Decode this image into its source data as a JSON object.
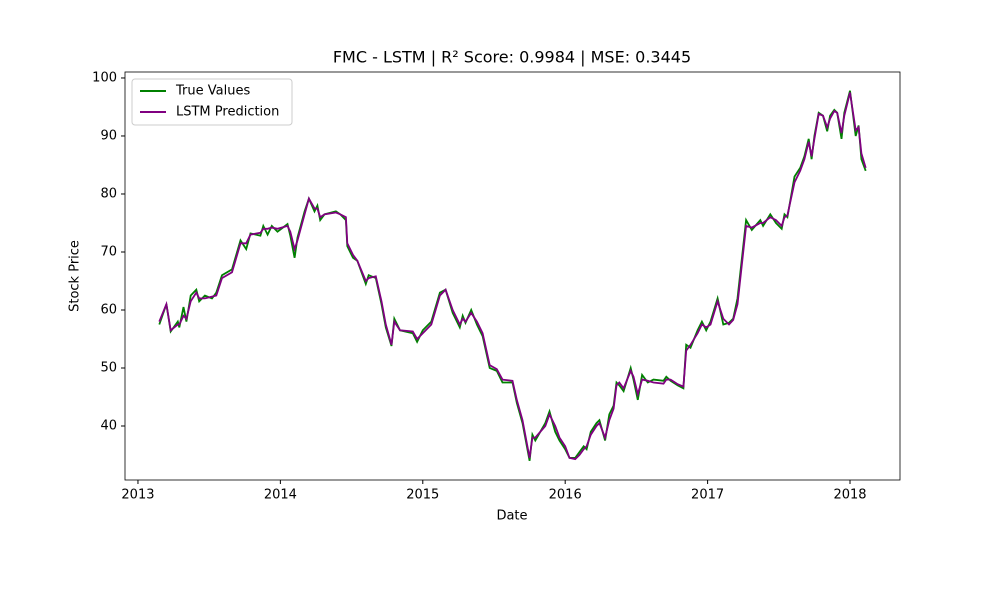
{
  "chart_data": {
    "type": "line",
    "title": "FMC - LSTM | R² Score: 0.9984 | MSE: 0.3445",
    "x_label": "Date",
    "y_label": "Stock Price",
    "x": [
      2013.15,
      2013.2,
      2013.23,
      2013.28,
      2013.29,
      2013.32,
      2013.34,
      2013.37,
      2013.41,
      2013.43,
      2013.47,
      2013.52,
      2013.55,
      2013.59,
      2013.66,
      2013.72,
      2013.76,
      2013.79,
      2013.86,
      2013.88,
      2013.91,
      2013.94,
      2013.98,
      2014.05,
      2014.07,
      2014.1,
      2014.12,
      2014.17,
      2014.2,
      2014.24,
      2014.26,
      2014.28,
      2014.31,
      2014.39,
      2014.42,
      2014.46,
      2014.47,
      2014.51,
      2014.54,
      2014.6,
      2014.62,
      2014.67,
      2014.71,
      2014.74,
      2014.78,
      2014.8,
      2014.84,
      2014.93,
      2014.96,
      2015.0,
      2015.06,
      2015.12,
      2015.16,
      2015.21,
      2015.26,
      2015.28,
      2015.3,
      2015.34,
      2015.38,
      2015.42,
      2015.47,
      2015.52,
      2015.56,
      2015.63,
      2015.66,
      2015.7,
      2015.75,
      2015.77,
      2015.79,
      2015.86,
      2015.89,
      2015.93,
      2015.96,
      2016.0,
      2016.03,
      2016.07,
      2016.1,
      2016.13,
      2016.15,
      2016.18,
      2016.22,
      2016.24,
      2016.28,
      2016.31,
      2016.34,
      2016.36,
      2016.38,
      2016.41,
      2016.46,
      2016.48,
      2016.51,
      2016.54,
      2016.58,
      2016.62,
      2016.69,
      2016.71,
      2016.74,
      2016.79,
      2016.83,
      2016.85,
      2016.88,
      2016.93,
      2016.96,
      2016.99,
      2017.02,
      2017.07,
      2017.11,
      2017.15,
      2017.18,
      2017.21,
      2017.27,
      2017.31,
      2017.37,
      2017.39,
      2017.44,
      2017.48,
      2017.52,
      2017.54,
      2017.56,
      2017.61,
      2017.65,
      2017.68,
      2017.71,
      2017.73,
      2017.75,
      2017.78,
      2017.81,
      2017.84,
      2017.86,
      2017.89,
      2017.91,
      2017.94,
      2017.96,
      2018.0,
      2018.04,
      2018.06,
      2018.08,
      2018.11
    ],
    "series": [
      {
        "name": "True Values",
        "color": "#008000",
        "values": [
          57.5,
          61,
          56.3,
          58,
          57,
          60.5,
          58,
          62.5,
          63.5,
          61.5,
          62.5,
          62,
          63,
          66,
          67,
          72,
          70.5,
          73.2,
          72.8,
          74.5,
          73,
          74.5,
          73.5,
          74.8,
          72.8,
          69,
          72.5,
          77,
          79.2,
          77,
          78,
          75.5,
          76.5,
          77,
          76.5,
          75.5,
          71,
          69,
          68.5,
          64.5,
          66,
          65.5,
          61,
          57,
          53.8,
          58.5,
          56.5,
          56,
          54.5,
          56.5,
          58,
          63,
          63.5,
          59.5,
          57,
          59,
          57.8,
          60,
          57.5,
          55.5,
          50,
          49.5,
          47.5,
          47.5,
          44,
          40.5,
          34,
          38.5,
          37.5,
          40.5,
          42.5,
          39,
          37.5,
          36,
          34.5,
          34.5,
          35.5,
          36.5,
          36,
          39,
          40.5,
          41,
          37.5,
          42,
          43.5,
          47.5,
          47,
          46,
          50,
          48,
          44.5,
          48.8,
          47.5,
          48,
          47.8,
          48.5,
          47.8,
          47,
          46.5,
          54,
          53.5,
          56.5,
          58,
          56.5,
          58,
          62,
          57.5,
          57.8,
          58.5,
          62,
          75.5,
          73.8,
          75.5,
          74.5,
          76.5,
          75,
          74,
          76.5,
          76,
          83,
          84.5,
          86.5,
          89.5,
          86,
          90,
          94,
          93.5,
          90.8,
          93.5,
          94.5,
          94,
          89.5,
          94,
          97.8,
          90,
          91.8,
          86,
          84
        ]
      },
      {
        "name": "LSTM Prediction",
        "color": "#800080",
        "values": [
          58,
          61,
          56.5,
          57.5,
          57.5,
          59,
          58.5,
          61.5,
          63,
          62,
          62,
          62.3,
          62.5,
          65.5,
          66.5,
          71.5,
          71.5,
          73,
          73.3,
          74,
          74,
          74.2,
          74,
          74.5,
          73.5,
          70.5,
          72,
          76.5,
          79.2,
          77.5,
          77.5,
          76,
          76.5,
          76.8,
          76.5,
          76,
          71.5,
          69.5,
          68.5,
          65,
          65.5,
          65.8,
          61.5,
          57.5,
          54,
          58,
          56.5,
          56.3,
          55,
          56,
          57.5,
          62.5,
          63.5,
          60,
          57.5,
          58.5,
          58,
          59.5,
          58,
          56,
          50.5,
          49.8,
          48,
          47.8,
          44.5,
          41,
          34.5,
          38,
          38,
          40,
          42,
          40,
          38,
          36.5,
          34.5,
          34.3,
          35,
          36,
          36.5,
          38.5,
          40,
          40.5,
          38,
          41,
          43,
          47,
          47.5,
          46.5,
          49.5,
          48.5,
          45.5,
          48,
          47.8,
          47.5,
          47.3,
          48,
          48,
          47.2,
          46.8,
          53,
          54,
          56,
          57.5,
          57,
          57.5,
          61.5,
          58.5,
          57.5,
          58.3,
          61,
          74.5,
          74.2,
          75,
          75,
          76,
          75.5,
          74.5,
          76,
          76.3,
          82,
          84,
          86,
          89,
          86.5,
          89.5,
          93.8,
          93.5,
          91.5,
          93,
          94.3,
          94,
          90.5,
          93.5,
          97.5,
          91,
          91.5,
          87,
          84.5
        ]
      }
    ],
    "xlim": [
      2012.909,
      2018.351
    ],
    "xticks": [
      2013,
      2014,
      2015,
      2016,
      2017,
      2018
    ],
    "ylim": [
      30.69,
      101.03
    ],
    "yticks": [
      40,
      50,
      60,
      70,
      80,
      90,
      100
    ],
    "legend": "upper left"
  }
}
